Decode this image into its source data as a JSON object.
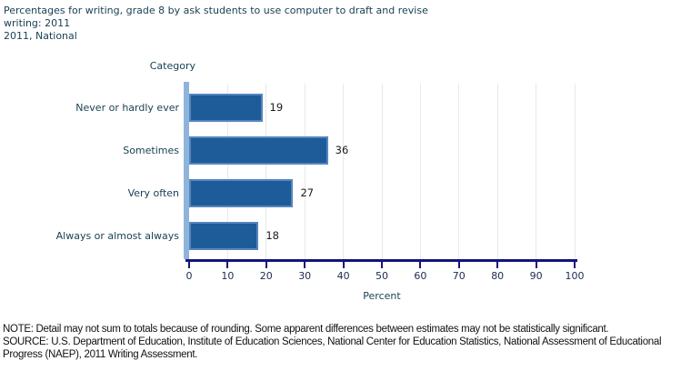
{
  "header": {
    "title_lines": [
      "Percentages for writing, grade 8 by ask students to use computer to draft and revise",
      "writing: 2011",
      "2011, National"
    ]
  },
  "chart_data": {
    "type": "bar",
    "orientation": "horizontal",
    "category_axis_label": "Category",
    "value_axis_label": "Percent",
    "categories": [
      "Never or hardly ever",
      "Sometimes",
      "Very often",
      "Always or almost always"
    ],
    "values": [
      19,
      36,
      27,
      18
    ],
    "xlim": [
      0,
      100
    ],
    "x_ticks": [
      0,
      10,
      20,
      30,
      40,
      50,
      60,
      70,
      80,
      90,
      100
    ],
    "grid": true,
    "legend": "none",
    "bar_color": "#1E5B99",
    "bar_border_color": "#5586BE",
    "baseline_color": "#8FB4DA",
    "axis_color": "#14147D",
    "gridline_color": "#E9E9E9"
  },
  "footer": {
    "note": "NOTE:  Detail may not sum to totals because of rounding. Some apparent differences between estimates may not be statistically significant.",
    "source": "SOURCE: U.S. Department of Education, Institute of Education Sciences, National Center for Education Statistics, National Assessment of Educational Progress (NAEP), 2011 Writing Assessment."
  }
}
